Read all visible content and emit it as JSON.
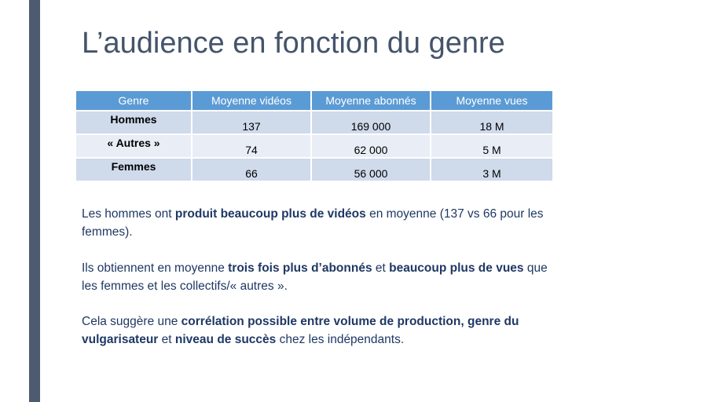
{
  "slide": {
    "title": "L’audience en fonction du genre"
  },
  "table": {
    "headers": [
      "Genre",
      "Moyenne vidéos",
      "Moyenne abonnés",
      "Moyenne vues"
    ],
    "rows": [
      [
        "Hommes",
        "137",
        "169 000",
        "18 M"
      ],
      [
        "« Autres »",
        "74",
        "62 000",
        "5 M"
      ],
      [
        "Femmes",
        "66",
        "56 000",
        "3 M"
      ]
    ]
  },
  "paragraphs": [
    [
      {
        "t": "Les hommes ont ",
        "b": false
      },
      {
        "t": "produit beaucoup plus de vidéos",
        "b": true
      },
      {
        "t": " en moyenne (137 vs 66 pour les femmes).",
        "b": false
      }
    ],
    [
      {
        "t": "Ils obtiennent en moyenne ",
        "b": false
      },
      {
        "t": "trois fois plus d’abonnés",
        "b": true
      },
      {
        "t": " et ",
        "b": false
      },
      {
        "t": "beaucoup plus de vues",
        "b": true
      },
      {
        "t": " que les femmes et les collectifs/« autres ».",
        "b": false
      }
    ],
    [
      {
        "t": "Cela suggère une ",
        "b": false
      },
      {
        "t": "corrélation possible entre volume de production, genre du vulgarisateur",
        "b": true
      },
      {
        "t": " et ",
        "b": false
      },
      {
        "t": "niveau de succès",
        "b": true
      },
      {
        "t": " chez les indépendants.",
        "b": false
      }
    ]
  ],
  "colors": {
    "accent_bar": "#4e5a70",
    "header_fill": "#5b9bd5",
    "row_dark": "#cfdaeb",
    "row_light": "#e8edf6",
    "body_text": "#1f3864",
    "title_text": "#44546a"
  }
}
